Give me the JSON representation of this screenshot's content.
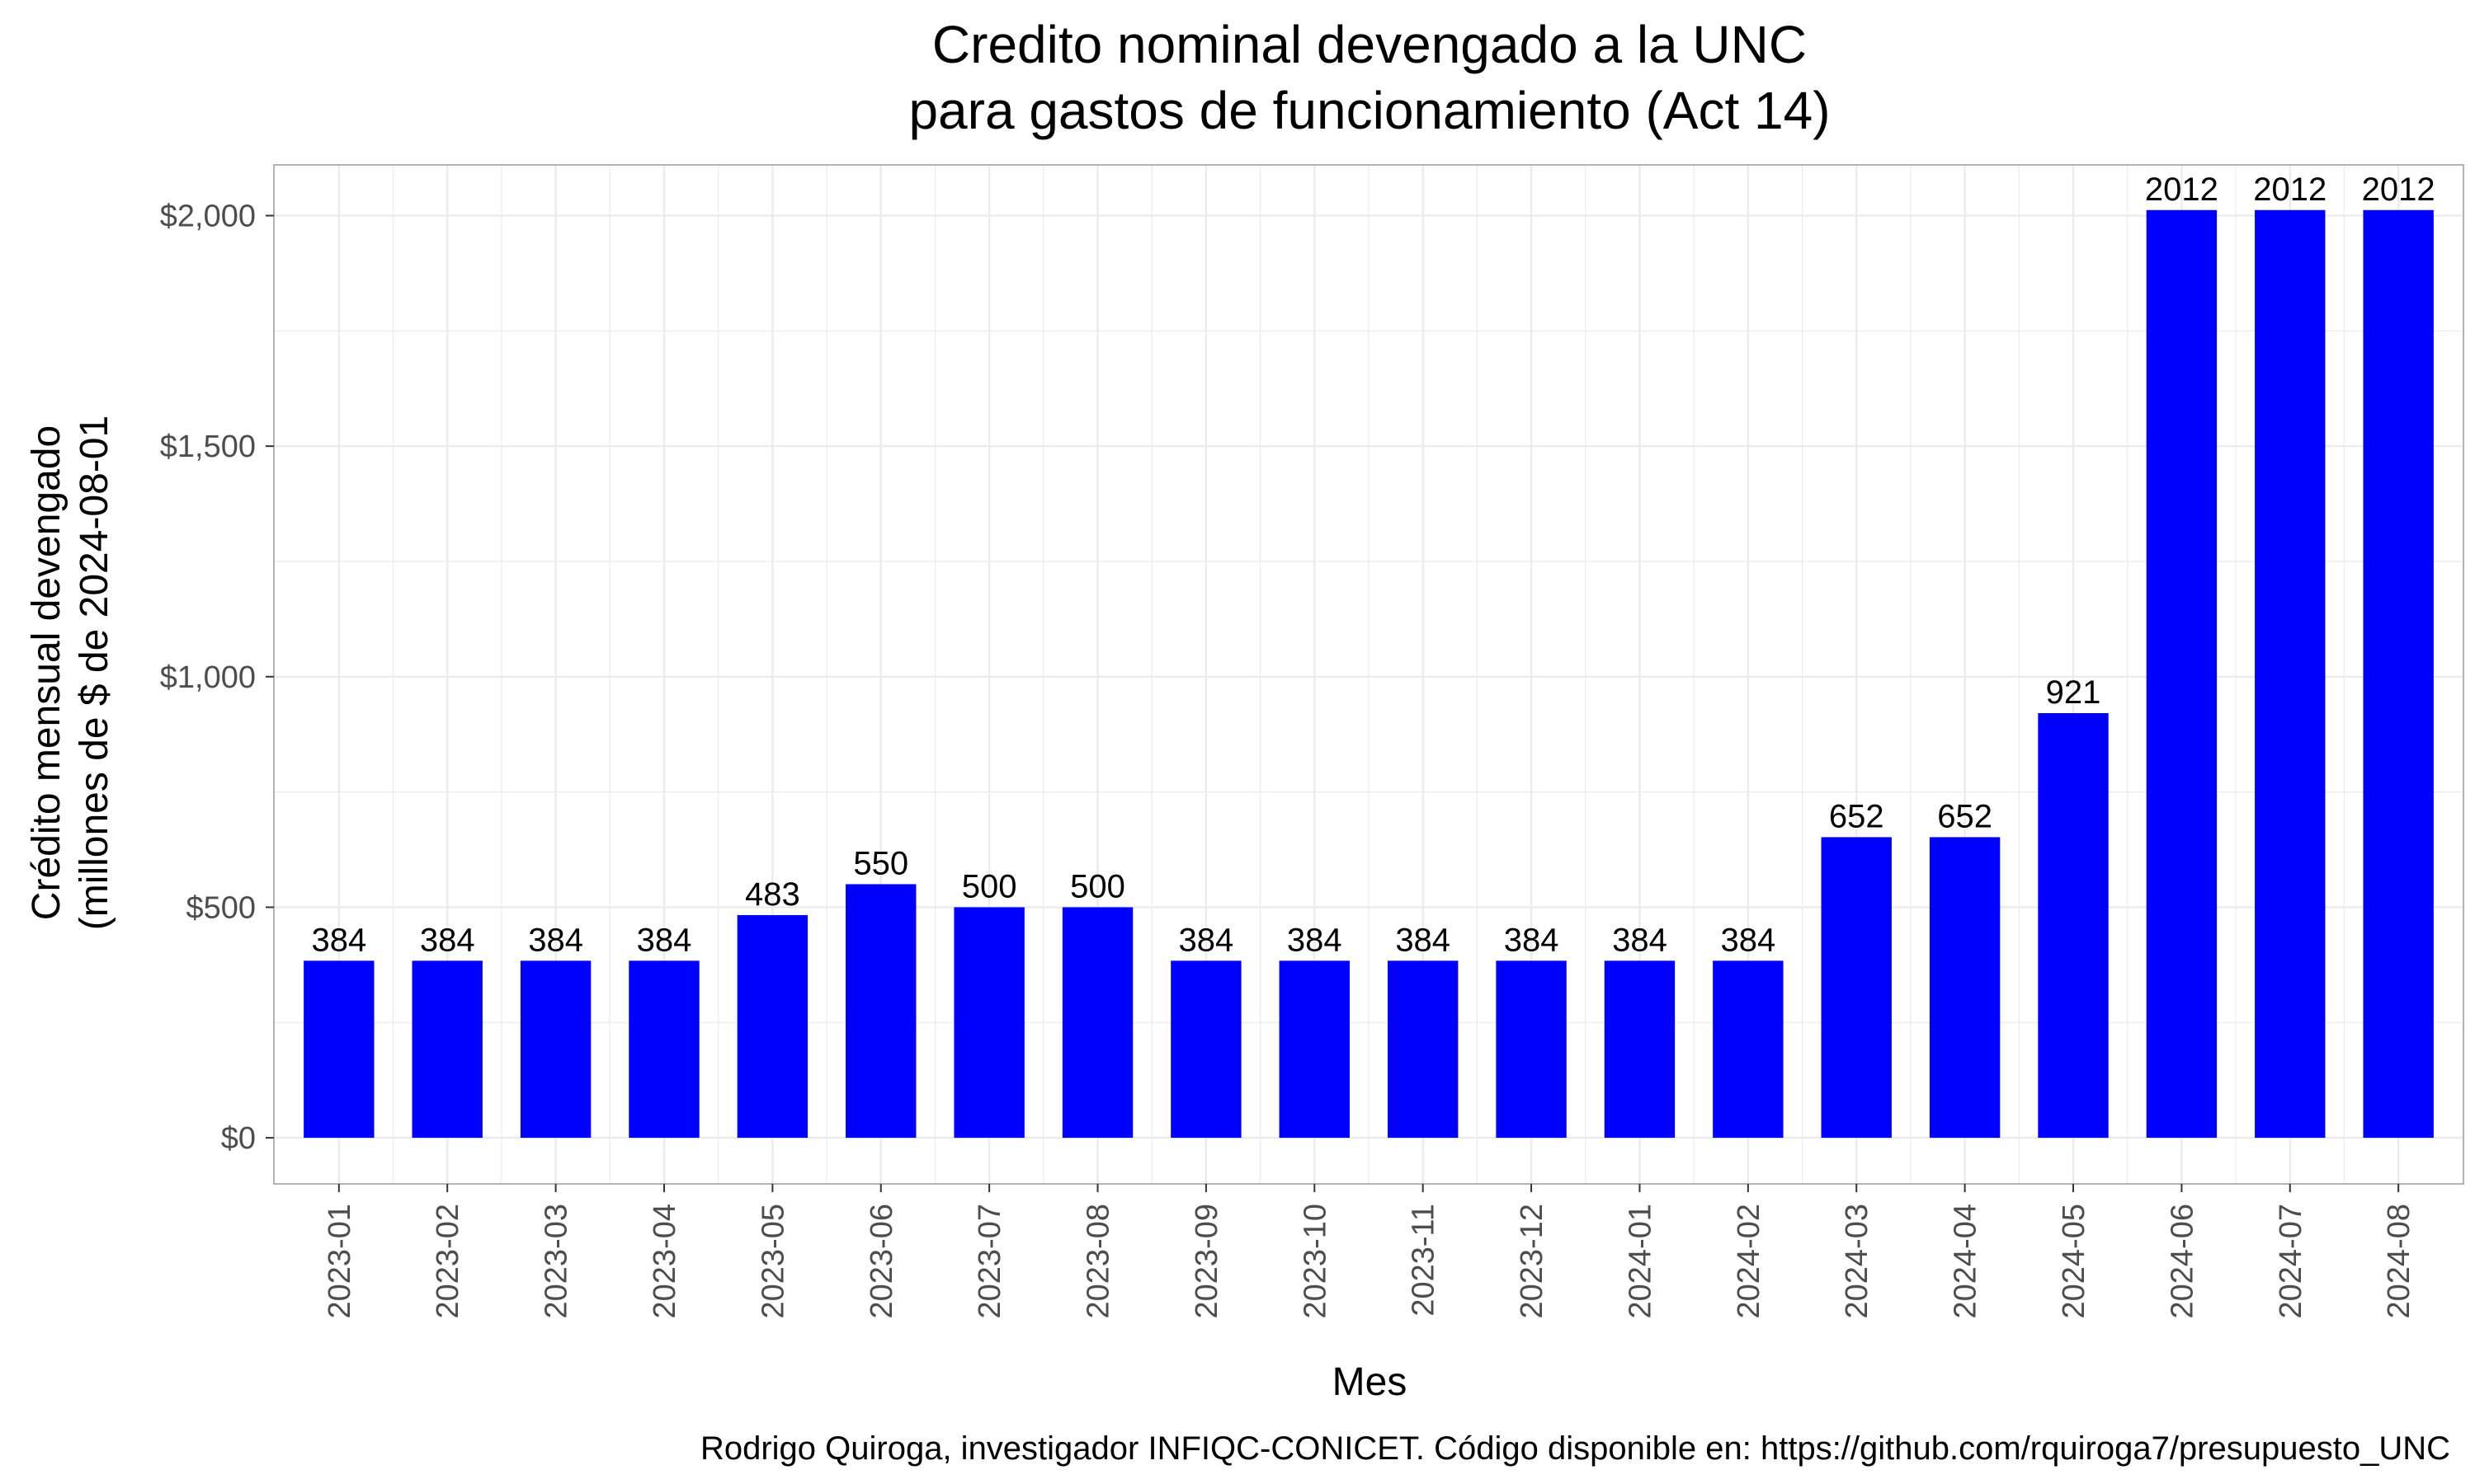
{
  "chart_data": {
    "type": "bar",
    "title": [
      "Credito nominal devengado a la UNC",
      "para gastos de funcionamiento (Act 14)"
    ],
    "xlabel": "Mes",
    "ylabel": [
      "Crédito mensual devengado",
      "(millones de $ de 2024-08-01"
    ],
    "caption": "Rodrigo Quiroga, investigador INFIQC-CONICET. Código disponible en: https://github.com/rquiroga7/presupuesto_UNC",
    "categories": [
      "2023-01",
      "2023-02",
      "2023-03",
      "2023-04",
      "2023-05",
      "2023-06",
      "2023-07",
      "2023-08",
      "2023-09",
      "2023-10",
      "2023-11",
      "2023-12",
      "2024-01",
      "2024-02",
      "2024-03",
      "2024-04",
      "2024-05",
      "2024-06",
      "2024-07",
      "2024-08"
    ],
    "values": [
      384,
      384,
      384,
      384,
      483,
      550,
      500,
      500,
      384,
      384,
      384,
      384,
      384,
      384,
      652,
      652,
      921,
      2012,
      2012,
      2012
    ],
    "ylim": [
      -100,
      2110
    ],
    "yticks": [
      0,
      500,
      1000,
      1500,
      2000
    ],
    "ytick_labels": [
      "$0",
      "$500",
      "$1,000",
      "$1,500",
      "$2,000"
    ],
    "grid": true,
    "legend": "none",
    "colors": {
      "bar": "#0000ff",
      "grid": "#ebebeb",
      "panel_border": "#b3b3b3"
    }
  }
}
